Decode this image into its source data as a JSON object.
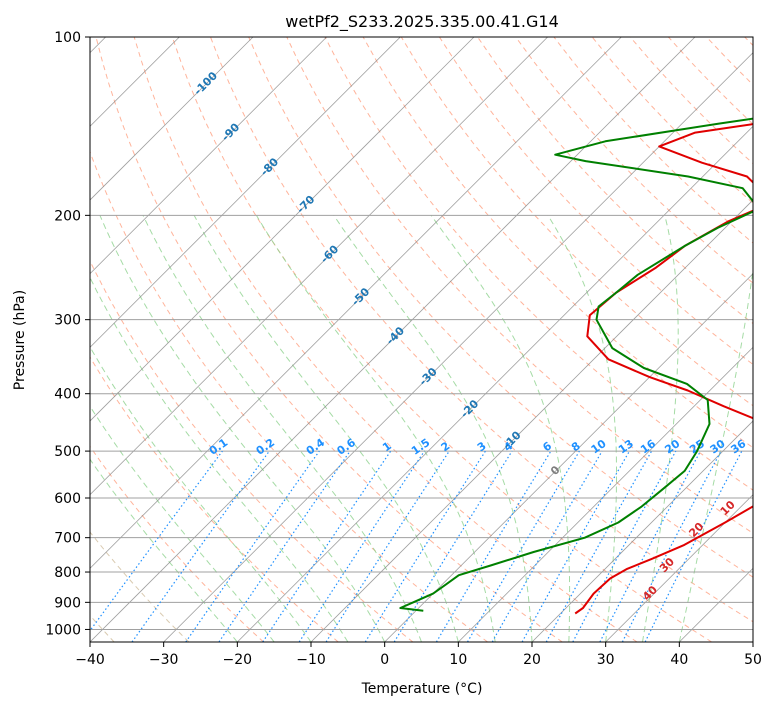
{
  "chart_data": {
    "type": "line",
    "title": "wetPf2_S233.2025.335.00.41.G14",
    "xlabel": "Temperature (°C)",
    "ylabel": "Pressure (hPa)",
    "xlim": [
      -40,
      50
    ],
    "ylim": [
      1050,
      100
    ],
    "y_scale": "log",
    "grid": true,
    "x_ticks": [
      -40,
      -30,
      -20,
      -10,
      0,
      10,
      20,
      30,
      40,
      50
    ],
    "y_ticks": [
      100,
      200,
      300,
      400,
      500,
      600,
      700,
      800,
      900,
      1000
    ],
    "colors": {
      "temperature": "#e00000",
      "dewpoint": "#008000",
      "isotherm_labels": "#1f77b4",
      "mixing_ratio": "#1e90ff",
      "dry_adiabat": "#ff9b7a",
      "moist_adiabat": "#8fd28f",
      "moist_label": "#d62728"
    },
    "isotherm_labels": [
      {
        "t": -100,
        "p": 120,
        "text": "-100"
      },
      {
        "t": -90,
        "p": 145,
        "text": "-90"
      },
      {
        "t": -80,
        "p": 166,
        "text": "-80"
      },
      {
        "t": -70,
        "p": 192,
        "text": "-70"
      },
      {
        "t": -60,
        "p": 233,
        "text": "-60"
      },
      {
        "t": -50,
        "p": 275,
        "text": "-50"
      },
      {
        "t": -40,
        "p": 320,
        "text": "-40"
      },
      {
        "t": -30,
        "p": 375,
        "text": "-30"
      },
      {
        "t": -20,
        "p": 425,
        "text": "-20"
      },
      {
        "t": -10,
        "p": 480,
        "text": "-10"
      },
      {
        "t": 0,
        "p": 540,
        "text": "0"
      }
    ],
    "mixing_ratio_lines": [
      "0.1",
      "0.2",
      "0.4",
      "0.6",
      "1",
      "1.5",
      "2",
      "3",
      "4",
      "6",
      "8",
      "10",
      "13",
      "16",
      "20",
      "25",
      "30",
      "36"
    ],
    "moist_adiabat_labels": [
      "10",
      "20",
      "30",
      "40"
    ],
    "series": [
      {
        "name": "temperature",
        "points": [
          [
            22.0,
            940
          ],
          [
            22.3,
            920
          ],
          [
            21.8,
            870
          ],
          [
            22.0,
            820
          ],
          [
            23.0,
            790
          ],
          [
            25.0,
            760
          ],
          [
            27.5,
            720
          ],
          [
            30.0,
            660
          ],
          [
            32.0,
            610
          ],
          [
            31.5,
            570
          ],
          [
            29.0,
            520
          ],
          [
            26.0,
            480
          ],
          [
            21.0,
            445
          ],
          [
            14.0,
            420
          ],
          [
            7.0,
            395
          ],
          [
            0.0,
            375
          ],
          [
            -8.0,
            350
          ],
          [
            -14.0,
            320
          ],
          [
            -16.5,
            295
          ],
          [
            -16.0,
            270
          ],
          [
            -14.0,
            245
          ],
          [
            -13.0,
            225
          ],
          [
            -10.5,
            205
          ],
          [
            -7.0,
            190
          ],
          [
            -14.0,
            172
          ],
          [
            -22.0,
            163
          ],
          [
            -30.0,
            153
          ],
          [
            -27.0,
            145
          ],
          [
            -17.0,
            138
          ],
          [
            -8.0,
            133
          ],
          [
            0.0,
            128
          ],
          [
            7.0,
            122
          ],
          [
            14.0,
            112
          ],
          [
            20.0,
            100
          ]
        ]
      },
      {
        "name": "dewpoint",
        "points": [
          [
            1.0,
            930
          ],
          [
            -2.5,
            920
          ],
          [
            -1.5,
            900
          ],
          [
            0.0,
            870
          ],
          [
            0.5,
            840
          ],
          [
            1.0,
            810
          ],
          [
            4.0,
            780
          ],
          [
            8.0,
            740
          ],
          [
            13.0,
            700
          ],
          [
            15.5,
            660
          ],
          [
            16.5,
            620
          ],
          [
            17.0,
            580
          ],
          [
            17.5,
            540
          ],
          [
            16.5,
            500
          ],
          [
            14.5,
            450
          ],
          [
            11.0,
            410
          ],
          [
            6.0,
            385
          ],
          [
            -2.0,
            362
          ],
          [
            -9.0,
            335
          ],
          [
            -15.0,
            300
          ],
          [
            -16.5,
            285
          ],
          [
            -16.0,
            270
          ],
          [
            -15.5,
            252
          ],
          [
            -13.0,
            225
          ],
          [
            -11.0,
            210
          ],
          [
            -8.0,
            195
          ],
          [
            -13.0,
            180
          ],
          [
            -22.0,
            172
          ],
          [
            -38.0,
            162
          ],
          [
            -43.0,
            158
          ],
          [
            -38.0,
            150
          ],
          [
            -25.0,
            140
          ],
          [
            -10.0,
            130
          ],
          [
            -2.0,
            125
          ],
          [
            -1.5,
            118
          ],
          [
            -1.0,
            110
          ],
          [
            1.0,
            100
          ]
        ]
      }
    ]
  }
}
